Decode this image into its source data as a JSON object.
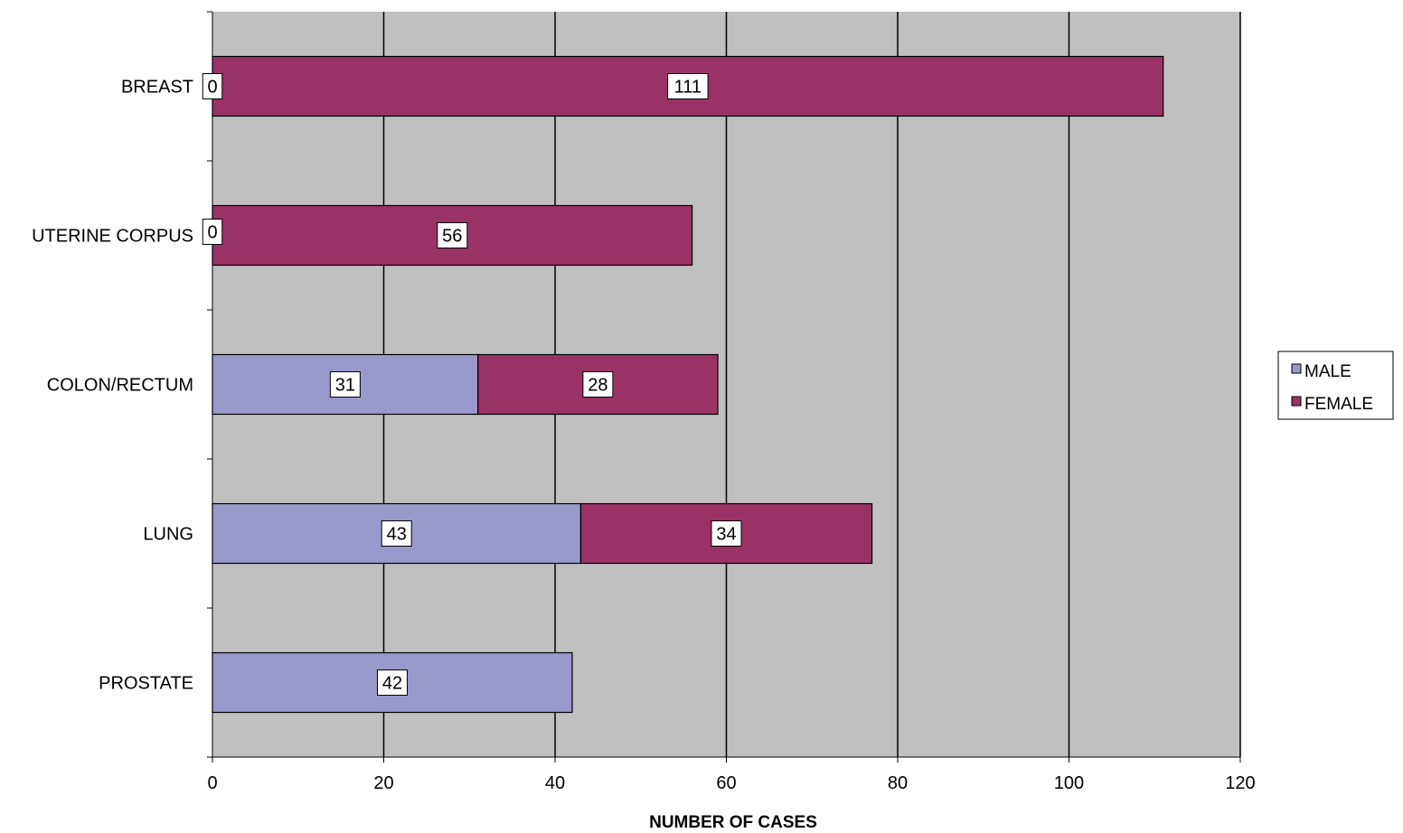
{
  "chart_data": {
    "type": "bar",
    "orientation": "horizontal",
    "stacked": true,
    "title": "",
    "xlabel": "NUMBER OF CASES",
    "ylabel": "",
    "xlim": [
      0,
      120
    ],
    "x_ticks": [
      "0",
      "20",
      "40",
      "60",
      "80",
      "100",
      "120"
    ],
    "grid": true,
    "legend_position": "right",
    "plot_background": "#c0c0c0",
    "categories": [
      "BREAST",
      "UTERINE CORPUS",
      "COLON/RECTUM",
      "LUNG",
      "PROSTATE"
    ],
    "series": [
      {
        "name": "MALE",
        "color": "#9999cc",
        "values": [
          0,
          0,
          31,
          43,
          42
        ],
        "labels": [
          "0",
          "0",
          "31",
          "43",
          "42"
        ]
      },
      {
        "name": "FEMALE",
        "color": "#993366",
        "values": [
          111,
          56,
          28,
          34,
          null
        ],
        "labels": [
          "111",
          "56",
          "28",
          "34",
          ""
        ]
      }
    ]
  }
}
